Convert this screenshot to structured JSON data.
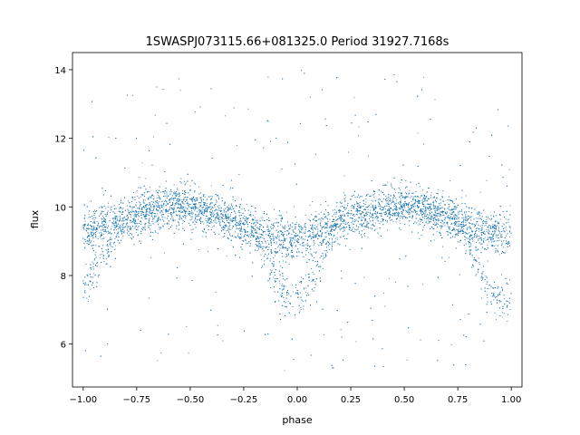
{
  "chart_data": {
    "type": "scatter",
    "title": "1SWASPJ073115.66+081325.0 Period 31927.7168s",
    "xlabel": "phase",
    "ylabel": "flux",
    "xlim": [
      -1.05,
      1.05
    ],
    "ylim": [
      4.75,
      14.5
    ],
    "xticks": [
      -1.0,
      -0.75,
      -0.5,
      -0.25,
      0.0,
      0.25,
      0.5,
      0.75,
      1.0
    ],
    "xtick_labels": [
      "−1.00",
      "−0.75",
      "−0.50",
      "−0.25",
      "0.00",
      "0.25",
      "0.50",
      "0.75",
      "1.00"
    ],
    "yticks": [
      6,
      8,
      10,
      12,
      14
    ],
    "ytick_labels": [
      "6",
      "8",
      "10",
      "12",
      "14"
    ],
    "grid": false,
    "marker_color": "#1f77b4",
    "series": [
      {
        "phase": [
          -1.0,
          -0.95,
          -0.9,
          -0.85,
          -0.8,
          -0.75,
          -0.7,
          -0.65,
          -0.6,
          -0.55,
          -0.5,
          -0.45,
          -0.4,
          -0.35,
          -0.3,
          -0.25,
          -0.2,
          -0.15,
          -0.1,
          -0.05,
          0.0,
          0.05,
          0.1,
          0.15,
          0.2,
          0.25,
          0.3,
          0.35,
          0.4,
          0.45,
          0.5,
          0.55,
          0.6,
          0.65,
          0.7,
          0.75,
          0.8,
          0.85,
          0.9,
          0.95,
          1.0
        ],
        "flux_upper_branch": [
          9.2,
          9.35,
          9.5,
          9.6,
          9.7,
          9.8,
          9.85,
          9.95,
          10.0,
          10.0,
          9.95,
          9.9,
          9.8,
          9.7,
          9.55,
          9.4,
          9.3,
          9.2,
          9.15,
          9.1,
          9.1,
          9.15,
          9.3,
          9.45,
          9.6,
          9.7,
          9.8,
          9.85,
          9.95,
          10.0,
          10.0,
          9.95,
          9.9,
          9.8,
          9.7,
          9.6,
          9.45,
          9.35,
          9.25,
          9.2,
          9.2
        ],
        "flux_eclipse_branch": [
          7.6,
          8.1,
          8.6,
          9.1,
          9.5,
          9.75,
          null,
          null,
          null,
          null,
          null,
          null,
          null,
          null,
          null,
          null,
          9.2,
          8.6,
          7.9,
          7.4,
          7.3,
          7.6,
          8.3,
          9.0,
          9.5,
          null,
          null,
          null,
          null,
          null,
          null,
          null,
          null,
          null,
          null,
          9.5,
          8.9,
          8.1,
          7.5,
          7.3,
          7.4
        ]
      }
    ]
  }
}
